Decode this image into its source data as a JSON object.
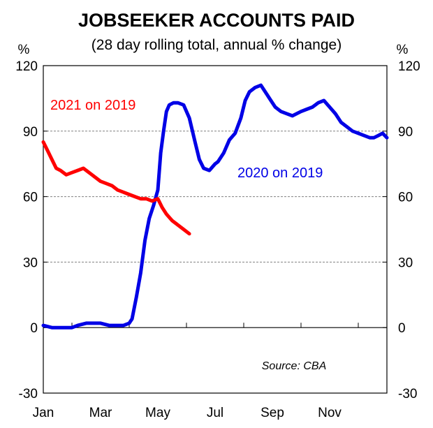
{
  "chart_data": {
    "type": "line",
    "title": "JOBSEEKER ACCOUNTS PAID",
    "subtitle": "(28 day rolling total, annual % change)",
    "y_unit_left": "%",
    "y_unit_right": "%",
    "ylim": [
      -30,
      120
    ],
    "yticks": [
      "120",
      "90",
      "60",
      "30",
      "0",
      "-30"
    ],
    "ytick_values": [
      120,
      90,
      60,
      30,
      0,
      -30
    ],
    "gridlines": [
      90,
      60,
      30
    ],
    "x_domain_months": [
      0,
      12
    ],
    "xticks": [
      "Jan",
      "Mar",
      "May",
      "Jul",
      "Sep",
      "Nov"
    ],
    "xtick_months": [
      0,
      2,
      4,
      6,
      8,
      10
    ],
    "source": "Source: CBA",
    "colors": {
      "series_2020": "#0000e6",
      "series_2021": "#ff0000",
      "grid": "#808080",
      "axis": "#000000"
    },
    "series": [
      {
        "name": "2020 on 2019",
        "color": "#0000e6",
        "x_months": [
          0.0,
          0.3,
          0.7,
          1.0,
          1.2,
          1.5,
          1.8,
          2.0,
          2.3,
          2.6,
          2.8,
          3.0,
          3.1,
          3.25,
          3.4,
          3.55,
          3.7,
          3.85,
          4.0,
          4.1,
          4.2,
          4.3,
          4.4,
          4.55,
          4.7,
          4.9,
          5.1,
          5.3,
          5.45,
          5.6,
          5.8,
          6.0,
          6.1,
          6.3,
          6.5,
          6.7,
          6.9,
          7.05,
          7.2,
          7.4,
          7.6,
          7.8,
          7.95,
          8.1,
          8.3,
          8.5,
          8.7,
          9.0,
          9.2,
          9.4,
          9.6,
          9.8,
          10.0,
          10.2,
          10.4,
          10.6,
          10.8,
          11.0,
          11.2,
          11.4,
          11.55,
          11.7,
          11.85,
          12.0
        ],
        "values": [
          1,
          0,
          0,
          0,
          1,
          2,
          2,
          2,
          1,
          1,
          1,
          2,
          4,
          14,
          25,
          40,
          50,
          56,
          63,
          80,
          90,
          99,
          102,
          103,
          103,
          102,
          96,
          85,
          77,
          73,
          72,
          75,
          76,
          80,
          86,
          89,
          96,
          104,
          108,
          110,
          111,
          107,
          104,
          101,
          99,
          98,
          97,
          99,
          100,
          101,
          103,
          104,
          101,
          98,
          94,
          92,
          90,
          89,
          88,
          87,
          87,
          88,
          89,
          87
        ]
      },
      {
        "name": "2021 on 2019",
        "color": "#ff0000",
        "x_months": [
          0.0,
          0.15,
          0.3,
          0.45,
          0.6,
          0.8,
          1.0,
          1.2,
          1.4,
          1.6,
          1.8,
          2.0,
          2.2,
          2.4,
          2.6,
          2.8,
          3.0,
          3.2,
          3.4,
          3.6,
          3.8,
          4.0,
          4.15,
          4.3,
          4.5,
          4.7,
          4.9,
          5.1
        ],
        "values": [
          85,
          81,
          77,
          73,
          72,
          70,
          71,
          72,
          73,
          71,
          69,
          67,
          66,
          65,
          63,
          62,
          61,
          60,
          59,
          59,
          58,
          59,
          55,
          52,
          49,
          47,
          45,
          43
        ]
      }
    ],
    "annotations": [
      {
        "series": "2021 on 2019",
        "text": "2021 on 2019"
      },
      {
        "series": "2020 on 2019",
        "text": "2020 on 2019"
      }
    ]
  }
}
